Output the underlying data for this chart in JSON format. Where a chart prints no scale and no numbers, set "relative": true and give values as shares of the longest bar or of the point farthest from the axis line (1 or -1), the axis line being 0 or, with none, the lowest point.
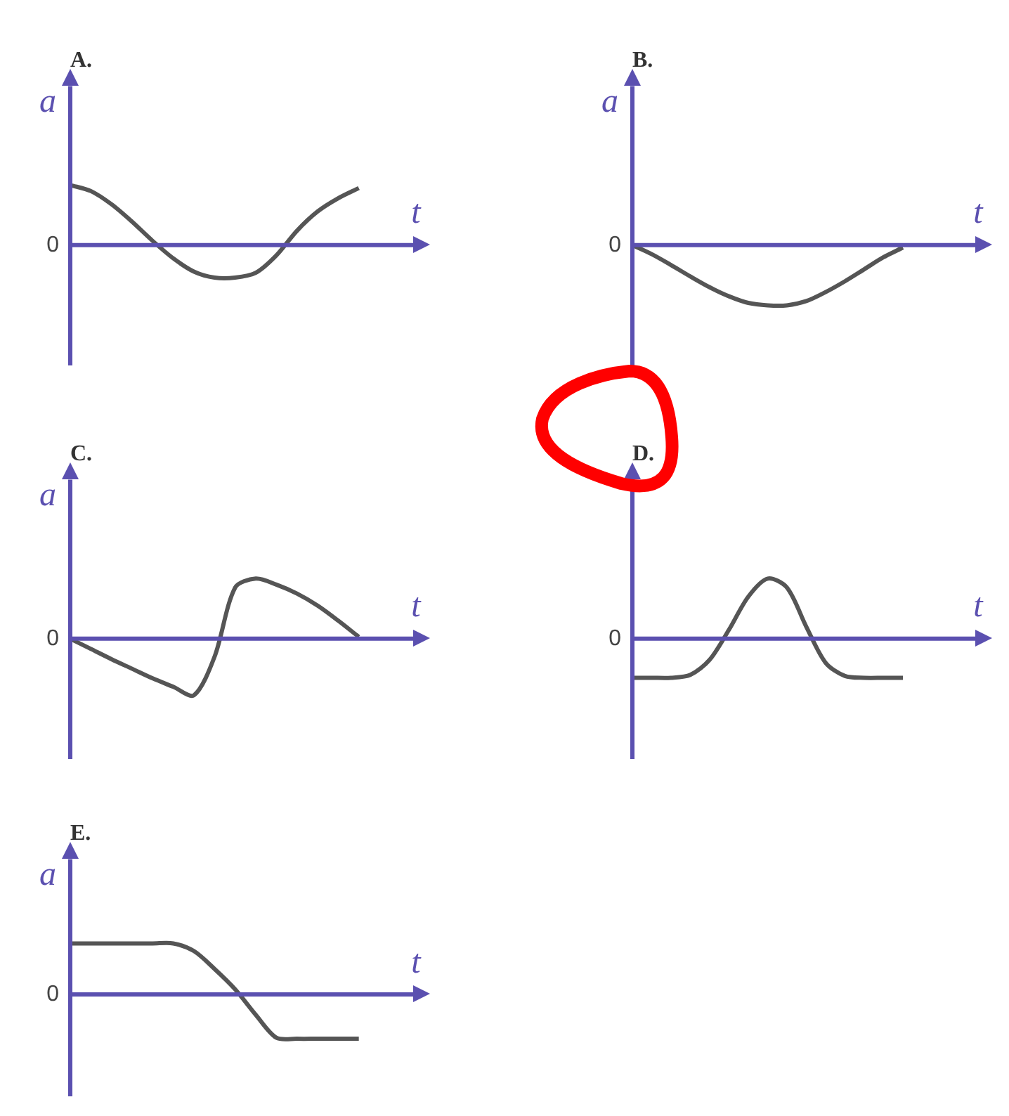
{
  "chart_data": [
    {
      "type": "line",
      "title": "A.",
      "xlabel": "t",
      "ylabel": "a",
      "relative": true,
      "annotations": [
        "0"
      ],
      "ref_lines": [
        {
          "axis": "y",
          "value": 0,
          "color": "#5b50b0"
        }
      ],
      "categories": [
        null,
        null,
        null,
        null,
        null,
        null,
        null,
        null,
        null,
        null,
        null,
        null,
        null,
        null,
        null,
        null
      ],
      "series": [
        {
          "color": "#555555",
          "values": [
            1,
            0.9,
            0.68,
            0.39,
            0.07,
            -0.22,
            -0.44,
            -0.54,
            -0.54,
            -0.46,
            -0.17,
            0.24,
            0.56,
            0.78,
            0.95,
            null
          ]
        }
      ]
    },
    {
      "type": "line",
      "title": "B.",
      "xlabel": "t",
      "ylabel": "a",
      "relative": true,
      "annotations": [
        "0"
      ],
      "ref_lines": [
        {
          "axis": "y",
          "value": 0,
          "color": "#5b50b0"
        }
      ],
      "categories": [
        null,
        null,
        null,
        null,
        null,
        null,
        null,
        null,
        null,
        null,
        null,
        null,
        null,
        null,
        null,
        null,
        null
      ],
      "series": [
        {
          "color": "#555555",
          "values": [
            0,
            -0.15,
            -0.33,
            -0.52,
            -0.7,
            -0.85,
            -0.96,
            -1,
            -1,
            -0.93,
            -0.78,
            -0.6,
            -0.4,
            -0.2,
            -0.04,
            null,
            null
          ]
        }
      ]
    },
    {
      "type": "line",
      "title": "C.",
      "xlabel": "t",
      "ylabel": "a",
      "relative": true,
      "annotations": [
        "0"
      ],
      "ref_lines": [
        {
          "axis": "y",
          "value": 0,
          "color": "#5b50b0"
        }
      ],
      "categories": [
        null,
        null,
        null,
        null,
        null,
        null,
        null,
        null,
        null,
        null,
        null,
        null,
        null,
        null,
        null,
        null
      ],
      "series": [
        {
          "color": "#555555",
          "values": [
            0,
            -0.17,
            -0.34,
            -0.5,
            -0.66,
            -0.8,
            -0.94,
            -0.3,
            0.85,
            1,
            0.9,
            0.75,
            0.55,
            0.3,
            0.03,
            null
          ]
        }
      ]
    },
    {
      "type": "line",
      "title": "D.",
      "xlabel": "t",
      "relative": true,
      "annotations": [
        "0"
      ],
      "ref_lines": [
        {
          "axis": "y",
          "value": 0,
          "color": "#5b50b0"
        }
      ],
      "categories": [
        null,
        null,
        null,
        null,
        null,
        null,
        null,
        null,
        null,
        null,
        null,
        null,
        null,
        null,
        null,
        null,
        null
      ],
      "series": [
        {
          "color": "#555555",
          "values": [
            -0.65,
            -0.65,
            -0.65,
            -0.6,
            -0.35,
            0.15,
            0.7,
            1,
            0.85,
            0.2,
            -0.4,
            -0.62,
            -0.65,
            -0.65,
            -0.65,
            null,
            null
          ]
        }
      ]
    },
    {
      "type": "line",
      "title": "E.",
      "xlabel": "t",
      "ylabel": "a",
      "relative": true,
      "annotations": [
        "0"
      ],
      "ref_lines": [
        {
          "axis": "y",
          "value": 0,
          "color": "#5b50b0"
        }
      ],
      "categories": [
        null,
        null,
        null,
        null,
        null,
        null,
        null,
        null,
        null,
        null,
        null,
        null,
        null,
        null,
        null,
        null
      ],
      "series": [
        {
          "color": "#555555",
          "values": [
            1,
            1,
            1,
            1,
            1,
            1,
            0.85,
            0.5,
            0.1,
            -0.4,
            -0.85,
            -0.87,
            -0.87,
            -0.87,
            -0.87,
            null
          ]
        }
      ]
    }
  ]
}
